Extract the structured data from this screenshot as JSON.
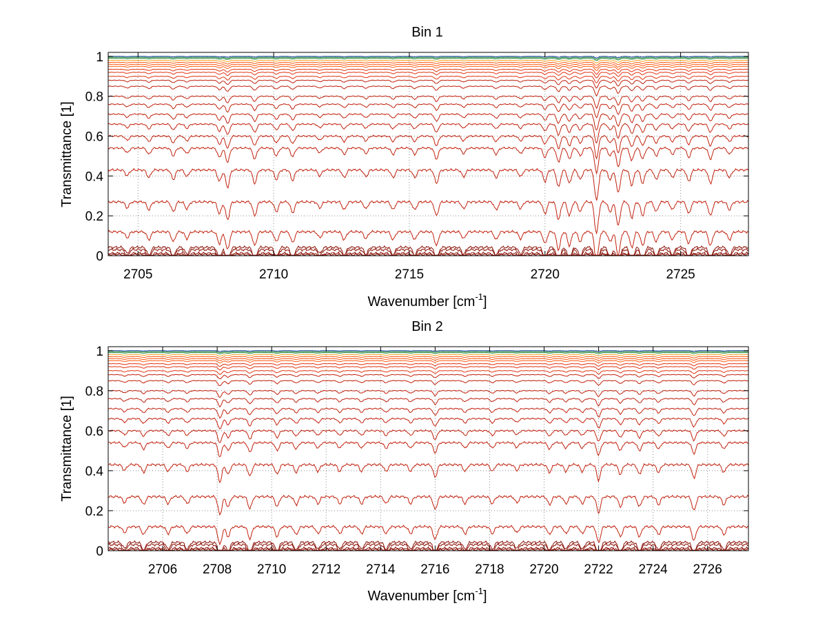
{
  "chart_data": [
    {
      "type": "line",
      "title": "Bin 1",
      "xlabel": "Wavenumber [cm",
      "xlabel_sup": "-1",
      "xlabel_close": "]",
      "ylabel": "Transmittance [1]",
      "xlim": [
        2703.9,
        2727.5
      ],
      "ylim": [
        0,
        1.02
      ],
      "xticks": [
        2705,
        2710,
        2715,
        2720,
        2725
      ],
      "xtick_labels": [
        "2705",
        "2710",
        "2715",
        "2720",
        "2725"
      ],
      "yticks": [
        0,
        0.2,
        0.4,
        0.6,
        0.8,
        1
      ],
      "ytick_labels": [
        "0",
        "0.2",
        "0.4",
        "0.6",
        "0.8",
        "1"
      ],
      "grid": "dotted",
      "baseline_levels": [
        0.005,
        0.012,
        0.03,
        0.042,
        0.12,
        0.27,
        0.43,
        0.54,
        0.6,
        0.66,
        0.71,
        0.76,
        0.8,
        0.85,
        0.88,
        0.9,
        0.92,
        0.935,
        0.95,
        0.96,
        0.97,
        0.98,
        0.99,
        0.995,
        1.0
      ],
      "absorption_lines": [
        {
          "x": 2704.6,
          "depth": 0.03
        },
        {
          "x": 2705.4,
          "depth": 0.04
        },
        {
          "x": 2706.3,
          "depth": 0.05
        },
        {
          "x": 2706.8,
          "depth": 0.035
        },
        {
          "x": 2708.0,
          "depth": 0.06
        },
        {
          "x": 2708.3,
          "depth": 0.09
        },
        {
          "x": 2709.3,
          "depth": 0.07
        },
        {
          "x": 2710.1,
          "depth": 0.05
        },
        {
          "x": 2710.7,
          "depth": 0.055
        },
        {
          "x": 2711.7,
          "depth": 0.03
        },
        {
          "x": 2712.6,
          "depth": 0.04
        },
        {
          "x": 2713.4,
          "depth": 0.035
        },
        {
          "x": 2714.4,
          "depth": 0.04
        },
        {
          "x": 2715.2,
          "depth": 0.04
        },
        {
          "x": 2716.0,
          "depth": 0.07
        },
        {
          "x": 2717.0,
          "depth": 0.035
        },
        {
          "x": 2718.2,
          "depth": 0.04
        },
        {
          "x": 2719.1,
          "depth": 0.035
        },
        {
          "x": 2720.0,
          "depth": 0.06
        },
        {
          "x": 2720.5,
          "depth": 0.09
        },
        {
          "x": 2720.9,
          "depth": 0.07
        },
        {
          "x": 2721.3,
          "depth": 0.05
        },
        {
          "x": 2721.9,
          "depth": 0.16
        },
        {
          "x": 2722.4,
          "depth": 0.05
        },
        {
          "x": 2722.7,
          "depth": 0.12
        },
        {
          "x": 2723.2,
          "depth": 0.08
        },
        {
          "x": 2723.6,
          "depth": 0.07
        },
        {
          "x": 2724.1,
          "depth": 0.05
        },
        {
          "x": 2724.7,
          "depth": 0.04
        },
        {
          "x": 2725.3,
          "depth": 0.06
        },
        {
          "x": 2726.1,
          "depth": 0.07
        },
        {
          "x": 2726.8,
          "depth": 0.04
        }
      ]
    },
    {
      "type": "line",
      "title": "Bin 2",
      "xlabel": "Wavenumber [cm",
      "xlabel_sup": "-1",
      "xlabel_close": "]",
      "ylabel": "Transmittance [1]",
      "xlim": [
        2704.0,
        2727.5
      ],
      "ylim": [
        0,
        1.02
      ],
      "xticks": [
        2706,
        2708,
        2710,
        2712,
        2714,
        2716,
        2718,
        2720,
        2722,
        2724,
        2726
      ],
      "xtick_labels": [
        "2706",
        "2708",
        "2710",
        "2712",
        "2714",
        "2716",
        "2718",
        "2720",
        "2722",
        "2724",
        "2726"
      ],
      "yticks": [
        0,
        0.2,
        0.4,
        0.6,
        0.8,
        1
      ],
      "ytick_labels": [
        "0",
        "0.2",
        "0.4",
        "0.6",
        "0.8",
        "1"
      ],
      "grid": "dotted",
      "baseline_levels": [
        0.005,
        0.012,
        0.03,
        0.042,
        0.12,
        0.27,
        0.43,
        0.54,
        0.6,
        0.66,
        0.71,
        0.76,
        0.8,
        0.85,
        0.88,
        0.9,
        0.92,
        0.935,
        0.95,
        0.96,
        0.97,
        0.98,
        0.99,
        0.995,
        1.0
      ],
      "absorption_lines": [
        {
          "x": 2704.6,
          "depth": 0.03
        },
        {
          "x": 2705.3,
          "depth": 0.04
        },
        {
          "x": 2706.2,
          "depth": 0.035
        },
        {
          "x": 2706.9,
          "depth": 0.035
        },
        {
          "x": 2708.1,
          "depth": 0.09
        },
        {
          "x": 2708.4,
          "depth": 0.05
        },
        {
          "x": 2709.2,
          "depth": 0.06
        },
        {
          "x": 2710.2,
          "depth": 0.05
        },
        {
          "x": 2710.9,
          "depth": 0.04
        },
        {
          "x": 2711.7,
          "depth": 0.035
        },
        {
          "x": 2712.5,
          "depth": 0.035
        },
        {
          "x": 2713.3,
          "depth": 0.035
        },
        {
          "x": 2714.2,
          "depth": 0.035
        },
        {
          "x": 2715.1,
          "depth": 0.035
        },
        {
          "x": 2716.0,
          "depth": 0.065
        },
        {
          "x": 2717.1,
          "depth": 0.035
        },
        {
          "x": 2718.1,
          "depth": 0.035
        },
        {
          "x": 2719.0,
          "depth": 0.03
        },
        {
          "x": 2720.2,
          "depth": 0.04
        },
        {
          "x": 2720.8,
          "depth": 0.035
        },
        {
          "x": 2721.4,
          "depth": 0.035
        },
        {
          "x": 2722.0,
          "depth": 0.08
        },
        {
          "x": 2722.8,
          "depth": 0.05
        },
        {
          "x": 2723.5,
          "depth": 0.05
        },
        {
          "x": 2724.2,
          "depth": 0.04
        },
        {
          "x": 2725.5,
          "depth": 0.07
        },
        {
          "x": 2726.6,
          "depth": 0.04
        }
      ]
    }
  ]
}
